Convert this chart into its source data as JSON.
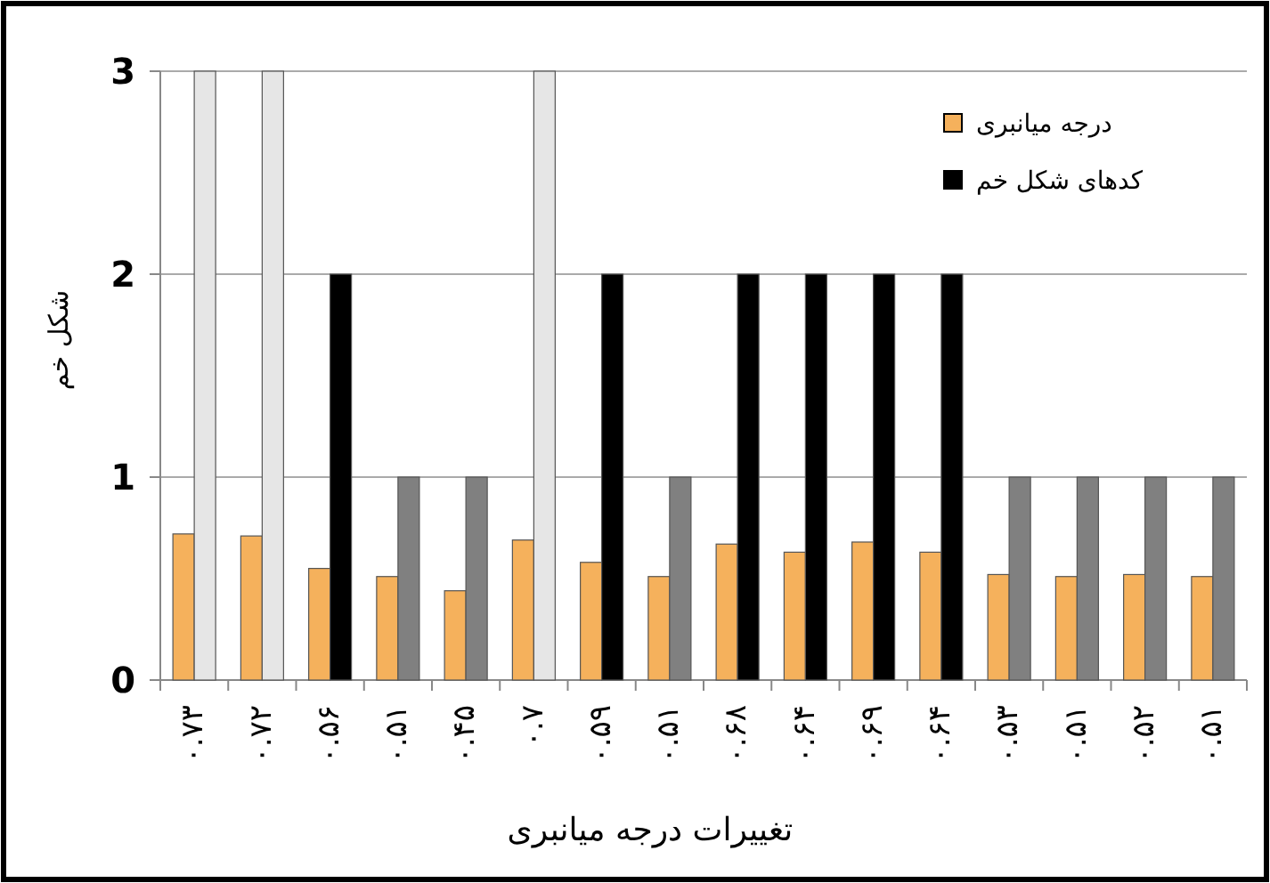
{
  "chart_data": {
    "type": "bar",
    "xlabel": "تغییرات درجه میانبری",
    "ylabel": "شکل خم",
    "categories": [
      "۰.۷۳",
      "۰.۷۲",
      "۰.۵۶",
      "۰.۵۱",
      "۰.۴۵",
      "۰.۷",
      "۰.۵۹",
      "۰.۵۱",
      "۰.۶۸",
      "۰.۶۴",
      "۰.۶۹",
      "۰.۶۴",
      "۰.۵۳",
      "۰.۵۱",
      "۰.۵۲",
      "۰.۵۱"
    ],
    "series": [
      {
        "name": "درجه میانبری",
        "color": "#f5b15c",
        "values": [
          0.72,
          0.71,
          0.55,
          0.51,
          0.44,
          0.69,
          0.58,
          0.51,
          0.67,
          0.63,
          0.68,
          0.63,
          0.52,
          0.51,
          0.52,
          0.51
        ]
      },
      {
        "name": "کدهای شکل خم",
        "color": "#000000",
        "colors": [
          "#e6e6e6",
          "#e6e6e6",
          "#000000",
          "#808080",
          "#808080",
          "#e6e6e6",
          "#000000",
          "#808080",
          "#000000",
          "#000000",
          "#000000",
          "#000000",
          "#808080",
          "#808080",
          "#808080",
          "#808080"
        ],
        "values": [
          3,
          3,
          2,
          1,
          1,
          3,
          2,
          1,
          2,
          2,
          2,
          2,
          1,
          1,
          1,
          1
        ]
      }
    ],
    "ylim": [
      0,
      3
    ],
    "yticks": [
      0,
      1,
      2,
      3
    ],
    "grid": "y",
    "legend": "top right"
  }
}
